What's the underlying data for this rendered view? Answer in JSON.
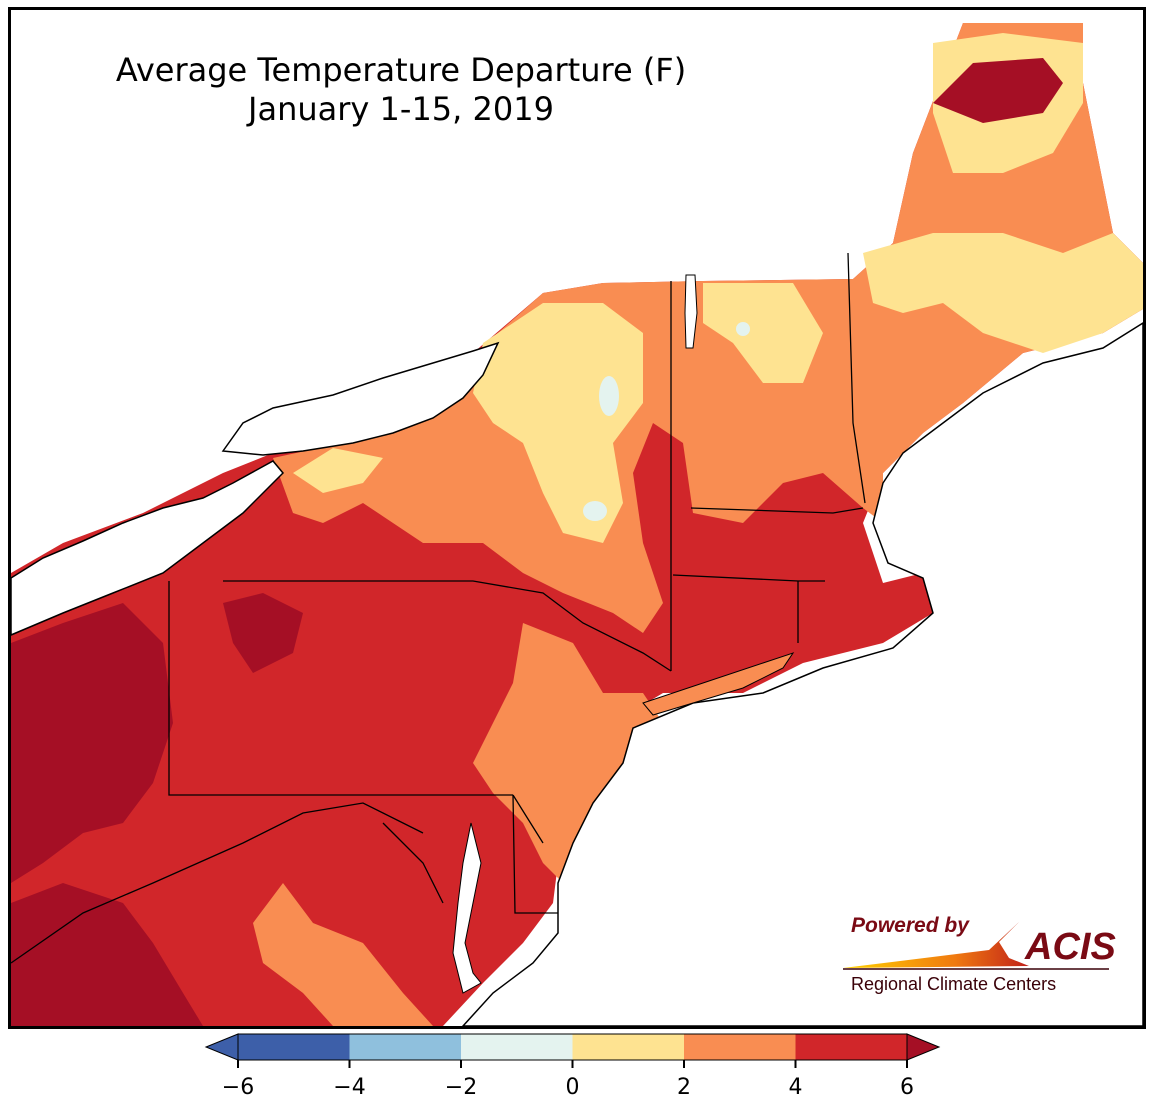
{
  "title": {
    "line1": "Average Temperature Departure (F)",
    "line2": "January 1-15, 2019"
  },
  "legend": {
    "ticks": [
      "−6",
      "−4",
      "−2",
      "0",
      "2",
      "4",
      "6"
    ],
    "bins": [
      {
        "range": [
          -6,
          -4
        ],
        "color": "#3d5fa9"
      },
      {
        "range": [
          -4,
          -2
        ],
        "color": "#8fc0dd"
      },
      {
        "range": [
          -2,
          0
        ],
        "color": "#e4f3ef"
      },
      {
        "range": [
          0,
          2
        ],
        "color": "#fee391"
      },
      {
        "range": [
          2,
          4
        ],
        "color": "#f98d52"
      },
      {
        "range": [
          4,
          6
        ],
        "color": "#d1262a"
      }
    ],
    "under_color": "#3d5fa9",
    "over_color": "#a50f25"
  },
  "logo": {
    "powered_by": "Powered by",
    "name": "ACIS",
    "subtitle": "Regional Climate Centers",
    "accent": "#7a0a14"
  }
}
